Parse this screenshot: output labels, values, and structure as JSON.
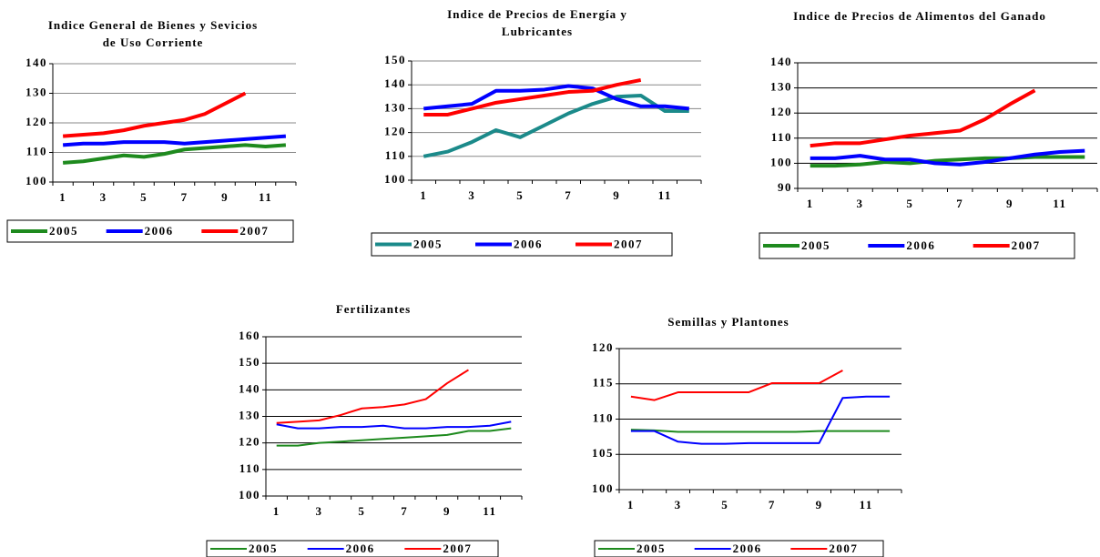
{
  "chart_data": [
    {
      "type": "line",
      "title": "Indice General de Bienes y Sevicios de Uso Corriente",
      "categories": [
        1,
        null,
        3,
        null,
        5,
        null,
        7,
        null,
        9,
        null,
        11,
        null
      ],
      "ylim": [
        100,
        140
      ],
      "yticks": [
        100,
        110,
        120,
        130,
        140
      ],
      "grid": true,
      "series": [
        {
          "name": "2005",
          "color": "#1e8a1e",
          "values": [
            106.5,
            107,
            108,
            109,
            108.5,
            109.5,
            111,
            111.5,
            112,
            112.5,
            112,
            112.5
          ]
        },
        {
          "name": "2006",
          "color": "#0000ff",
          "values": [
            112.5,
            113,
            113,
            113.5,
            113.5,
            113.5,
            113,
            113.5,
            114,
            114.5,
            115,
            115.5
          ]
        },
        {
          "name": "2007",
          "color": "#ff0000",
          "values": [
            115.5,
            116,
            116.5,
            117.5,
            119,
            120,
            121,
            123,
            126.5,
            130,
            null,
            null
          ]
        }
      ]
    },
    {
      "type": "line",
      "title": "Indice de Precios de Energía y Lubricantes",
      "categories": [
        1,
        null,
        3,
        null,
        5,
        null,
        7,
        null,
        9,
        null,
        11,
        null
      ],
      "ylim": [
        100,
        150
      ],
      "yticks": [
        100,
        110,
        120,
        130,
        140,
        150
      ],
      "grid": true,
      "series": [
        {
          "name": "2005",
          "color": "#1b8a8a",
          "values": [
            110,
            112,
            116,
            121,
            118,
            123,
            128,
            132,
            135,
            135.5,
            129,
            129
          ]
        },
        {
          "name": "2006",
          "color": "#0000ff",
          "values": [
            130,
            131,
            132,
            137.5,
            137.5,
            138,
            139.5,
            138.5,
            134,
            131,
            131,
            130
          ]
        },
        {
          "name": "2007",
          "color": "#ff0000",
          "values": [
            127.5,
            127.5,
            130,
            132.5,
            134,
            135.5,
            137,
            137.5,
            140,
            142,
            null,
            null
          ]
        }
      ]
    },
    {
      "type": "line",
      "title": "Indice de Precios de Alimentos del Ganado",
      "categories": [
        1,
        null,
        3,
        null,
        5,
        null,
        7,
        null,
        9,
        null,
        11,
        null
      ],
      "ylim": [
        90,
        140
      ],
      "yticks": [
        90,
        100,
        110,
        120,
        130,
        140
      ],
      "grid": true,
      "series": [
        {
          "name": "2005",
          "color": "#1e8a1e",
          "values": [
            99,
            99,
            99.5,
            100.5,
            100,
            101,
            101.5,
            102,
            102,
            102.5,
            102.5,
            102.5
          ]
        },
        {
          "name": "2006",
          "color": "#0000ff",
          "values": [
            102,
            102,
            103,
            101.5,
            101.5,
            100,
            99.5,
            100.5,
            102,
            103.5,
            104.5,
            105
          ]
        },
        {
          "name": "2007",
          "color": "#ff0000",
          "values": [
            107,
            108,
            108,
            109.5,
            111,
            112,
            113,
            117.5,
            123.5,
            129,
            null,
            null
          ]
        }
      ]
    },
    {
      "type": "line",
      "title": "Fertilizantes",
      "categories": [
        1,
        null,
        3,
        null,
        5,
        null,
        7,
        null,
        9,
        null,
        11,
        null
      ],
      "ylim": [
        100,
        160
      ],
      "yticks": [
        100,
        110,
        120,
        130,
        140,
        150,
        160
      ],
      "grid": true,
      "series": [
        {
          "name": "2005",
          "color": "#1e8a1e",
          "values": [
            119,
            119,
            120,
            120.5,
            121,
            121.5,
            122,
            122.5,
            123,
            124.5,
            124.5,
            125.5
          ]
        },
        {
          "name": "2006",
          "color": "#0000ff",
          "values": [
            127,
            125.5,
            125.5,
            126,
            126,
            126.5,
            125.5,
            125.5,
            126,
            126,
            126.5,
            128
          ]
        },
        {
          "name": "2007",
          "color": "#ff0000",
          "values": [
            127.5,
            128,
            128.5,
            130.5,
            133,
            133.5,
            134.5,
            136.5,
            142.5,
            147.5,
            null,
            null
          ]
        }
      ]
    },
    {
      "type": "line",
      "title": "Semillas y Plantones",
      "categories": [
        1,
        null,
        3,
        null,
        5,
        null,
        7,
        null,
        9,
        null,
        11,
        null
      ],
      "ylim": [
        100,
        120
      ],
      "yticks": [
        100,
        105,
        110,
        115,
        120
      ],
      "grid": true,
      "series": [
        {
          "name": "2005",
          "color": "#1e8a1e",
          "values": [
            108.5,
            108.4,
            108.2,
            108.2,
            108.2,
            108.2,
            108.2,
            108.2,
            108.3,
            108.3,
            108.3,
            108.3
          ]
        },
        {
          "name": "2006",
          "color": "#0000ff",
          "values": [
            108.3,
            108.3,
            106.8,
            106.5,
            106.5,
            106.6,
            106.6,
            106.6,
            106.6,
            113,
            113.2,
            113.2
          ]
        },
        {
          "name": "2007",
          "color": "#ff0000",
          "values": [
            113.2,
            112.7,
            113.8,
            113.8,
            113.8,
            113.8,
            115.1,
            115.1,
            115.1,
            116.9,
            null,
            null
          ]
        }
      ]
    }
  ]
}
